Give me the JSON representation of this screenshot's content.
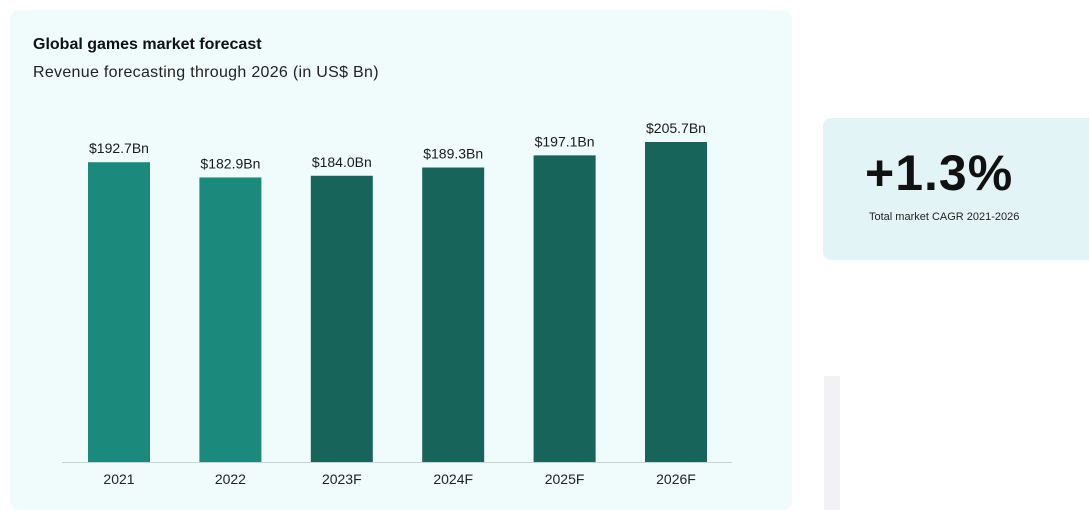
{
  "chart_data": {
    "type": "bar",
    "title": "Global games market forecast",
    "subtitle": "Revenue forecasting through 2026 (in US$ Bn)",
    "categories": [
      "2021",
      "2022",
      "2023F",
      "2024F",
      "2025F",
      "2026F"
    ],
    "values": [
      192.7,
      182.9,
      184.0,
      189.3,
      197.1,
      205.7
    ],
    "value_labels": [
      "$192.7Bn",
      "$182.9Bn",
      "$184.0Bn",
      "$189.3Bn",
      "$197.1Bn",
      "$205.7Bn"
    ],
    "bar_colors": [
      "#1b8a7c",
      "#1b8a7c",
      "#17645a",
      "#17645a",
      "#17645a",
      "#17645a"
    ],
    "ylim": [
      0,
      205.7
    ],
    "grid": false,
    "legend": "none"
  },
  "colors": {
    "actual": "#1b8a7c",
    "forecast": "#17645a",
    "panel_background": "#f0fbfb",
    "card_background": "#e2f4f6"
  },
  "stat_card": {
    "value": "+1.3%",
    "caption": "Total market CAGR 2021-2026"
  }
}
